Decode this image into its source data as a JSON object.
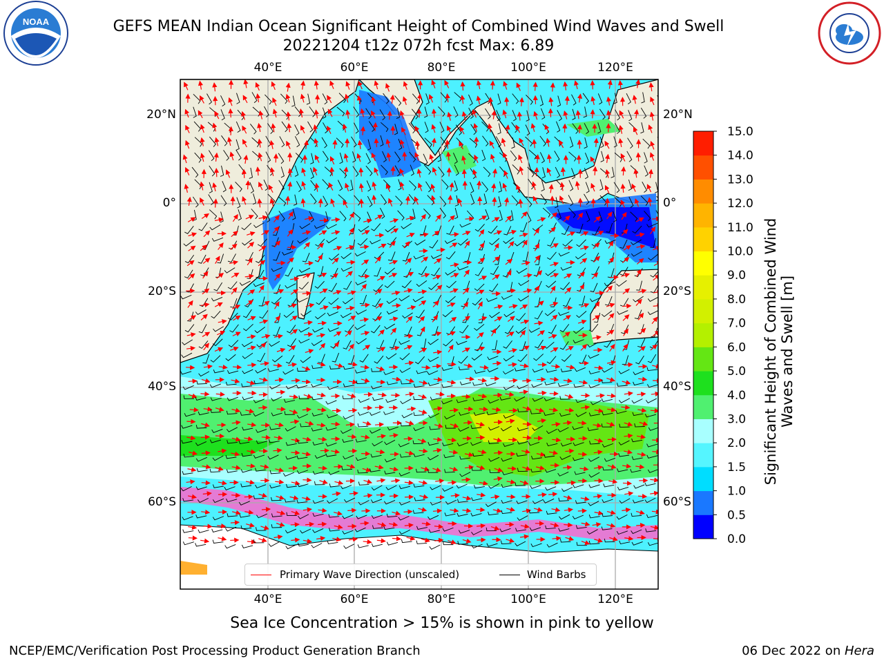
{
  "header": {
    "title": "GEFS MEAN Indian Ocean Significant Height of Combined Wind Waves and Swell",
    "subtitle": "20221204 t12z 072h fcst   Max: 6.89"
  },
  "logos": {
    "left": "NOAA",
    "right": "NATIONAL WEATHER SERVICE"
  },
  "map": {
    "lon_range": [
      20,
      130
    ],
    "lat_range": [
      -75,
      27
    ],
    "lon_ticks": [
      "40°E",
      "60°E",
      "80°E",
      "100°E",
      "120°E"
    ],
    "lat_ticks": [
      "20°N",
      "0°",
      "20°S",
      "40°S",
      "60°S"
    ],
    "grid": true,
    "max_value": 6.89
  },
  "colorbar": {
    "label": "Significant Height of Combined Wind Waves and Swell [m]",
    "ticks": [
      "0.0",
      "0.5",
      "1.0",
      "1.5",
      "2.0",
      "3.0",
      "4.0",
      "5.0",
      "6.0",
      "7.0",
      "8.0",
      "9.0",
      "10.0",
      "11.0",
      "12.0",
      "13.0",
      "14.0",
      "15.0"
    ],
    "colors": [
      "#0000ff",
      "#1a78ff",
      "#00ddff",
      "#55f5ff",
      "#a8ffff",
      "#50f070",
      "#1ee01e",
      "#64e614",
      "#b4f000",
      "#d2f000",
      "#e6f000",
      "#ffff00",
      "#ffd200",
      "#ffb400",
      "#ff8c00",
      "#ff5000",
      "#ff1e00"
    ]
  },
  "legend": {
    "wave_dir_label": "Primary Wave Direction (unscaled)",
    "wind_barbs_label": "Wind Barbs",
    "wave_color": "#ff0000",
    "wind_color": "#000000"
  },
  "footer": {
    "note": "Sea Ice Concentration > 15% is shown in pink to yellow",
    "left": "NCEP/EMC/Verification Post Processing Product Generation Branch",
    "date": "06 Dec 2022 on ",
    "machine": "Hera"
  },
  "colors": {
    "land": "#efeddc",
    "ocean_calm": "#4df1ff",
    "swell_high": "#50f070",
    "ice": "#ff66cc"
  }
}
